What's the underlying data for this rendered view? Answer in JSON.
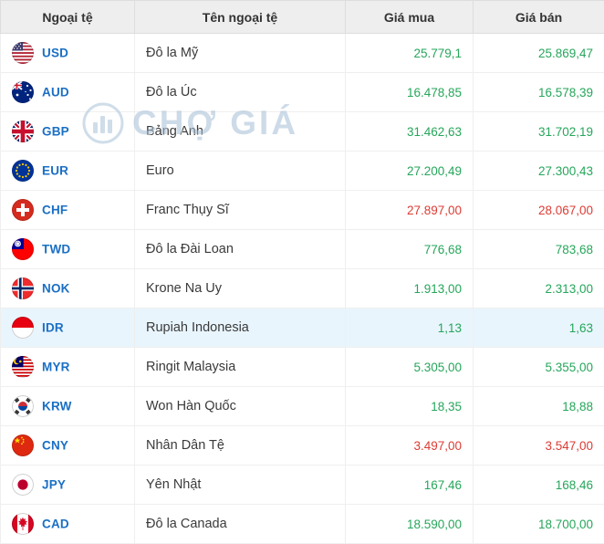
{
  "table": {
    "columns": [
      "Ngoại tệ",
      "Tên ngoại tệ",
      "Giá mua",
      "Giá bán"
    ],
    "rows": [
      {
        "code": "USD",
        "name": "Đô la Mỹ",
        "buy": "25.779,1",
        "sell": "25.869,47",
        "trend": "up",
        "flag": "usd-flag-icon",
        "highlighted": false
      },
      {
        "code": "AUD",
        "name": "Đô la Úc",
        "buy": "16.478,85",
        "sell": "16.578,39",
        "trend": "up",
        "flag": "aud-flag-icon",
        "highlighted": false
      },
      {
        "code": "GBP",
        "name": "Bảng Anh",
        "buy": "31.462,63",
        "sell": "31.702,19",
        "trend": "up",
        "flag": "gbp-flag-icon",
        "highlighted": false
      },
      {
        "code": "EUR",
        "name": "Euro",
        "buy": "27.200,49",
        "sell": "27.300,43",
        "trend": "up",
        "flag": "eur-flag-icon",
        "highlighted": false
      },
      {
        "code": "CHF",
        "name": "Franc Thụy Sĩ",
        "buy": "27.897,00",
        "sell": "28.067,00",
        "trend": "down",
        "flag": "chf-flag-icon",
        "highlighted": false
      },
      {
        "code": "TWD",
        "name": "Đô la Đài Loan",
        "buy": "776,68",
        "sell": "783,68",
        "trend": "up",
        "flag": "twd-flag-icon",
        "highlighted": false
      },
      {
        "code": "NOK",
        "name": "Krone Na Uy",
        "buy": "1.913,00",
        "sell": "2.313,00",
        "trend": "up",
        "flag": "nok-flag-icon",
        "highlighted": false
      },
      {
        "code": "IDR",
        "name": "Rupiah Indonesia",
        "buy": "1,13",
        "sell": "1,63",
        "trend": "up",
        "flag": "idr-flag-icon",
        "highlighted": true
      },
      {
        "code": "MYR",
        "name": "Ringit Malaysia",
        "buy": "5.305,00",
        "sell": "5.355,00",
        "trend": "up",
        "flag": "myr-flag-icon",
        "highlighted": false
      },
      {
        "code": "KRW",
        "name": "Won Hàn Quốc",
        "buy": "18,35",
        "sell": "18,88",
        "trend": "up",
        "flag": "krw-flag-icon",
        "highlighted": false
      },
      {
        "code": "CNY",
        "name": "Nhân Dân Tệ",
        "buy": "3.497,00",
        "sell": "3.547,00",
        "trend": "down",
        "flag": "cny-flag-icon",
        "highlighted": false
      },
      {
        "code": "JPY",
        "name": "Yên Nhật",
        "buy": "167,46",
        "sell": "168,46",
        "trend": "up",
        "flag": "jpy-flag-icon",
        "highlighted": false
      },
      {
        "code": "CAD",
        "name": "Đô la Canada",
        "buy": "18.590,00",
        "sell": "18.700,00",
        "trend": "up",
        "flag": "cad-flag-icon",
        "highlighted": false
      }
    ]
  },
  "watermark": {
    "text": "CHỢ GIÁ",
    "icon": "cho-gia-logo-icon"
  },
  "colors": {
    "code_blue": "#1a6fc4",
    "up_green": "#26a65b",
    "down_red": "#dd3b34",
    "header_bg": "#eeeeee",
    "highlight_bg": "#e9f5fd"
  }
}
